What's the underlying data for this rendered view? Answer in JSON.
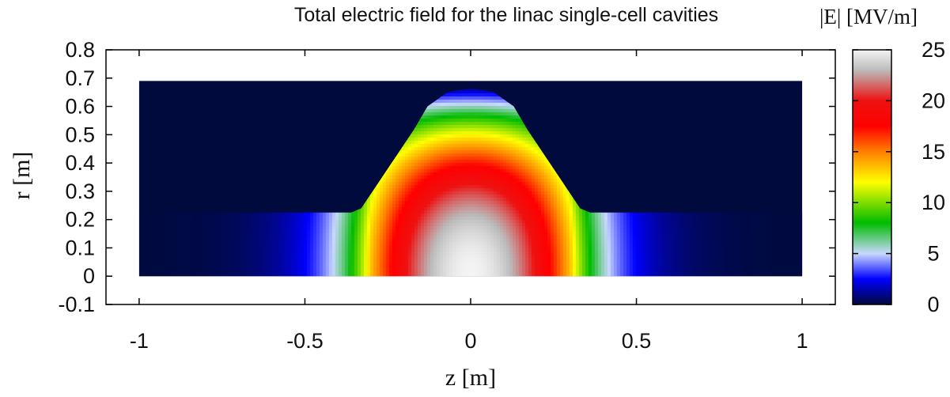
{
  "chart_data": {
    "type": "heatmap",
    "title": "Total electric field for the linac single-cell cavities",
    "xlabel": "z [m]",
    "ylabel": "r [m]",
    "xlim": [
      -1.1,
      1.1
    ],
    "ylim": [
      -0.1,
      0.8
    ],
    "x_ticks": [
      {
        "value": -1,
        "label": "-1"
      },
      {
        "value": -0.5,
        "label": "-0.5"
      },
      {
        "value": 0,
        "label": "0"
      },
      {
        "value": 0.5,
        "label": "0.5"
      },
      {
        "value": 1,
        "label": "1"
      }
    ],
    "y_ticks": [
      {
        "value": -0.1,
        "label": "-0.1"
      },
      {
        "value": 0,
        "label": "0"
      },
      {
        "value": 0.1,
        "label": "0.1"
      },
      {
        "value": 0.2,
        "label": "0.2"
      },
      {
        "value": 0.3,
        "label": "0.3"
      },
      {
        "value": 0.4,
        "label": "0.4"
      },
      {
        "value": 0.5,
        "label": "0.5"
      },
      {
        "value": 0.6,
        "label": "0.6"
      },
      {
        "value": 0.7,
        "label": "0.7"
      },
      {
        "value": 0.8,
        "label": "0.8"
      }
    ],
    "colorbar": {
      "label": "|E| [MV/m]",
      "range": [
        0,
        25
      ],
      "ticks": [
        {
          "value": 0,
          "label": "0"
        },
        {
          "value": 5,
          "label": "5"
        },
        {
          "value": 10,
          "label": "10"
        },
        {
          "value": 15,
          "label": "15"
        },
        {
          "value": 20,
          "label": "20"
        },
        {
          "value": 25,
          "label": "25"
        }
      ],
      "stops": [
        {
          "value": 0,
          "color": "#000a3c"
        },
        {
          "value": 2.5,
          "color": "#0000ff"
        },
        {
          "value": 5,
          "color": "#c8d8ff"
        },
        {
          "value": 8,
          "color": "#00bb00"
        },
        {
          "value": 12,
          "color": "#ffff00"
        },
        {
          "value": 15,
          "color": "#ff7f00"
        },
        {
          "value": 17.5,
          "color": "#ff0000"
        },
        {
          "value": 20,
          "color": "#ee1111"
        },
        {
          "value": 23,
          "color": "#bbbbbb"
        },
        {
          "value": 25,
          "color": "#f4f4f4"
        }
      ]
    },
    "domain": {
      "z_range": [
        -1,
        1
      ],
      "r_max": 0.69,
      "beam_pipe_radius": 0.225,
      "outline_z": [
        -1,
        -0.36,
        -0.33,
        -0.17,
        -0.13,
        -0.07,
        0,
        0.07,
        0.13,
        0.17,
        0.33,
        0.36,
        1
      ],
      "outline_r": [
        0.225,
        0.225,
        0.24,
        0.52,
        0.6,
        0.65,
        0.665,
        0.65,
        0.6,
        0.52,
        0.24,
        0.225,
        0.225
      ]
    },
    "background_field_value": 0,
    "peak_field_value": 25,
    "grid": false
  }
}
